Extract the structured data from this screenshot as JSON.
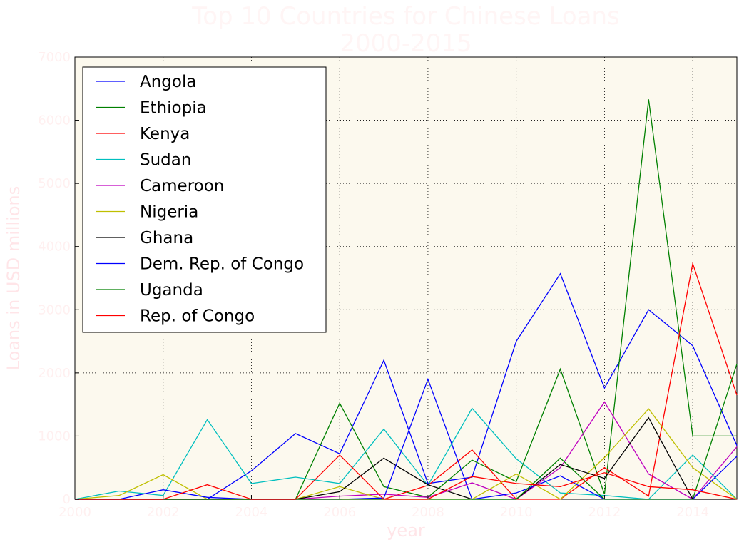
{
  "chart_data": {
    "type": "line",
    "title_line1": "Top 10 Countries for Chinese Loans",
    "title_line2": "2000-2015",
    "xlabel": "year",
    "ylabel": "Loans in USD millions",
    "xlim": [
      2000,
      2015
    ],
    "ylim": [
      0,
      7000
    ],
    "x_ticks": [
      "2000",
      "2002",
      "2004",
      "2006",
      "2008",
      "2010",
      "2012",
      "2014"
    ],
    "y_ticks": [
      "0",
      "1000",
      "2000",
      "3000",
      "4000",
      "5000",
      "6000",
      "7000"
    ],
    "grid": true,
    "legend_position": "top-left",
    "background_color": "#fcf9ee",
    "x": [
      2000,
      2001,
      2002,
      2003,
      2004,
      2005,
      2006,
      2007,
      2008,
      2009,
      2010,
      2011,
      2012,
      2013,
      2014,
      2015
    ],
    "series": [
      {
        "name": "Angola",
        "color": "#0000ff",
        "values": [
          0,
          0,
          0,
          0,
          450,
          1040,
          720,
          2200,
          250,
          350,
          2500,
          3570,
          1760,
          3000,
          2430,
          850
        ]
      },
      {
        "name": "Ethiopia",
        "color": "#008000",
        "values": [
          0,
          0,
          0,
          0,
          0,
          0,
          1520,
          200,
          30,
          620,
          280,
          2060,
          80,
          6330,
          1000,
          1000
        ]
      },
      {
        "name": "Kenya",
        "color": "#ff0000",
        "values": [
          0,
          0,
          0,
          0,
          0,
          0,
          0,
          0,
          220,
          780,
          0,
          0,
          500,
          50,
          3730,
          1650
        ]
      },
      {
        "name": "Sudan",
        "color": "#00bfbf",
        "values": [
          0,
          130,
          60,
          1260,
          250,
          350,
          250,
          1110,
          220,
          1440,
          640,
          100,
          60,
          0,
          700,
          0
        ]
      },
      {
        "name": "Cameroon",
        "color": "#bf00bf",
        "values": [
          0,
          0,
          0,
          0,
          0,
          0,
          50,
          80,
          30,
          260,
          0,
          500,
          1540,
          400,
          0,
          830
        ]
      },
      {
        "name": "Nigeria",
        "color": "#bfbf00",
        "values": [
          0,
          60,
          390,
          0,
          0,
          0,
          200,
          0,
          0,
          0,
          400,
          0,
          660,
          1430,
          500,
          0
        ]
      },
      {
        "name": "Ghana",
        "color": "#000000",
        "values": [
          0,
          0,
          0,
          0,
          0,
          0,
          120,
          650,
          230,
          0,
          0,
          550,
          330,
          1290,
          0,
          0
        ]
      },
      {
        "name": "Dem. Rep. of Congo",
        "color": "#0000ff",
        "values": [
          0,
          0,
          150,
          30,
          0,
          0,
          0,
          20,
          1900,
          0,
          100,
          370,
          0,
          0,
          0,
          680
        ]
      },
      {
        "name": "Uganda",
        "color": "#008000",
        "values": [
          0,
          0,
          0,
          0,
          0,
          0,
          0,
          0,
          0,
          0,
          0,
          650,
          0,
          0,
          0,
          2140
        ]
      },
      {
        "name": "Rep. of Congo",
        "color": "#ff0000",
        "values": [
          0,
          0,
          0,
          230,
          0,
          0,
          700,
          0,
          0,
          360,
          250,
          200,
          420,
          200,
          150,
          0
        ]
      }
    ]
  }
}
